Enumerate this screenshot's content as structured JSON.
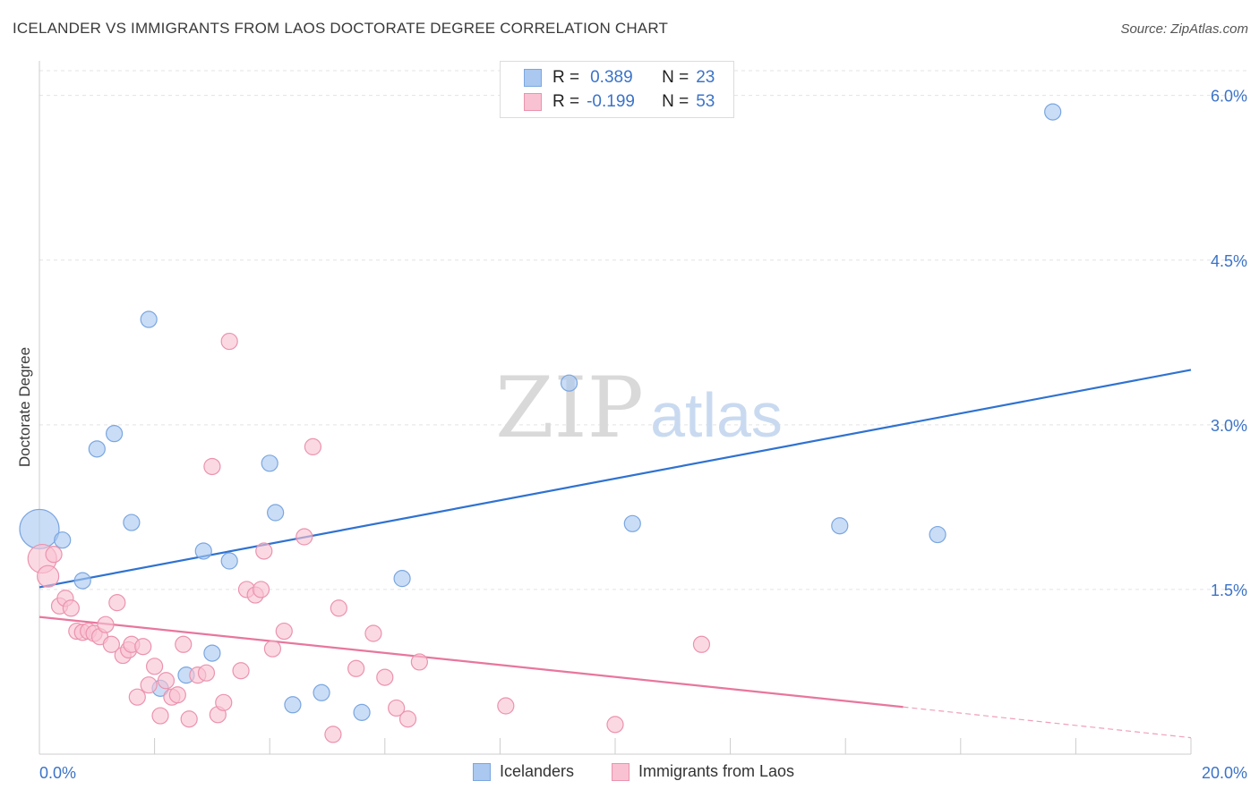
{
  "title": "ICELANDER VS IMMIGRANTS FROM LAOS DOCTORATE DEGREE CORRELATION CHART",
  "source": "Source: ZipAtlas.com",
  "watermark": {
    "zip": "ZIP",
    "atlas": "atlas"
  },
  "legend": [
    {
      "r_label": "R =",
      "r_value": "0.389",
      "n_label": "N =",
      "n_value": "23",
      "color": "#aac8f0",
      "border": "#7aa6e0"
    },
    {
      "r_label": "R =",
      "r_value": "-0.199",
      "n_label": "N =",
      "n_value": "53",
      "color": "#f8c2d2",
      "border": "#eb93ae"
    }
  ],
  "bottom_legend": [
    {
      "label": "Icelanders",
      "color": "#aac8f0",
      "border": "#7aa6e0"
    },
    {
      "label": "Immigrants from Laos",
      "color": "#f8c2d2",
      "border": "#eb93ae"
    }
  ],
  "chart_data": {
    "type": "scatter",
    "title": "ICELANDER VS IMMIGRANTS FROM LAOS DOCTORATE DEGREE CORRELATION CHART",
    "xlabel": "",
    "ylabel": "Doctorate Degree",
    "xlim": [
      0,
      20
    ],
    "ylim": [
      0,
      6.25
    ],
    "x_tick_labels": [
      "0.0%",
      "20.0%"
    ],
    "y_ticks": [
      1.5,
      3.0,
      4.5,
      6.0
    ],
    "y_tick_labels": [
      "1.5%",
      "3.0%",
      "4.5%",
      "6.0%"
    ],
    "grid": true,
    "legend_position": "top-center",
    "series": [
      {
        "name": "Icelanders",
        "color": "#7aa6e0",
        "fill": "#aac8f0",
        "line_color": "#2f72d0",
        "trend": {
          "x0": 0,
          "y0": 1.52,
          "x1": 20,
          "y1": 3.5
        },
        "points": [
          [
            0.0,
            2.05,
            22
          ],
          [
            0.4,
            1.95,
            9
          ],
          [
            0.75,
            1.58,
            9
          ],
          [
            1.0,
            2.78,
            9
          ],
          [
            1.3,
            2.92,
            9
          ],
          [
            1.6,
            2.11,
            9
          ],
          [
            1.9,
            3.96,
            9
          ],
          [
            2.1,
            0.6,
            9
          ],
          [
            2.55,
            0.72,
            9
          ],
          [
            2.85,
            1.85,
            9
          ],
          [
            3.0,
            0.92,
            9
          ],
          [
            3.3,
            1.76,
            9
          ],
          [
            4.0,
            2.65,
            9
          ],
          [
            4.1,
            2.2,
            9
          ],
          [
            4.4,
            0.45,
            9
          ],
          [
            4.9,
            0.56,
            9
          ],
          [
            5.6,
            0.38,
            9
          ],
          [
            6.3,
            1.6,
            9
          ],
          [
            9.2,
            3.38,
            9
          ],
          [
            10.3,
            2.1,
            9
          ],
          [
            13.9,
            2.08,
            9
          ],
          [
            15.6,
            2.0,
            9
          ],
          [
            17.6,
            5.85,
            9
          ]
        ]
      },
      {
        "name": "Immigrants from Laos",
        "color": "#eb93ae",
        "fill": "#f8c2d2",
        "line_color": "#e8769e",
        "trend": {
          "x0": 0,
          "y0": 1.25,
          "x1": 15.0,
          "y1": 0.43
        },
        "trend_dashed": {
          "x0": 15.0,
          "y0": 0.43,
          "x1": 20,
          "y1": 0.15
        },
        "points": [
          [
            0.05,
            1.78,
            16
          ],
          [
            0.15,
            1.62,
            12
          ],
          [
            0.25,
            1.82,
            9
          ],
          [
            0.35,
            1.35,
            9
          ],
          [
            0.45,
            1.42,
            9
          ],
          [
            0.55,
            1.33,
            9
          ],
          [
            0.65,
            1.12,
            9
          ],
          [
            0.75,
            1.11,
            9
          ],
          [
            0.85,
            1.12,
            9
          ],
          [
            0.95,
            1.1,
            9
          ],
          [
            1.05,
            1.07,
            9
          ],
          [
            1.15,
            1.18,
            9
          ],
          [
            1.25,
            1.0,
            9
          ],
          [
            1.35,
            1.38,
            9
          ],
          [
            1.45,
            0.9,
            9
          ],
          [
            1.55,
            0.95,
            9
          ],
          [
            1.6,
            1.0,
            9
          ],
          [
            1.7,
            0.52,
            9
          ],
          [
            1.8,
            0.98,
            9
          ],
          [
            1.9,
            0.63,
            9
          ],
          [
            2.0,
            0.8,
            9
          ],
          [
            2.1,
            0.35,
            9
          ],
          [
            2.2,
            0.67,
            9
          ],
          [
            2.3,
            0.52,
            9
          ],
          [
            2.4,
            0.54,
            9
          ],
          [
            2.5,
            1.0,
            9
          ],
          [
            2.6,
            0.32,
            9
          ],
          [
            2.75,
            0.72,
            9
          ],
          [
            2.9,
            0.74,
            9
          ],
          [
            3.0,
            2.62,
            9
          ],
          [
            3.1,
            0.36,
            9
          ],
          [
            3.2,
            0.47,
            9
          ],
          [
            3.3,
            3.76,
            9
          ],
          [
            3.5,
            0.76,
            9
          ],
          [
            3.6,
            1.5,
            9
          ],
          [
            3.75,
            1.45,
            9
          ],
          [
            3.85,
            1.5,
            9
          ],
          [
            3.9,
            1.85,
            9
          ],
          [
            4.05,
            0.96,
            9
          ],
          [
            4.25,
            1.12,
            9
          ],
          [
            4.6,
            1.98,
            9
          ],
          [
            4.75,
            2.8,
            9
          ],
          [
            5.1,
            0.18,
            9
          ],
          [
            5.2,
            1.33,
            9
          ],
          [
            5.5,
            0.78,
            9
          ],
          [
            5.8,
            1.1,
            9
          ],
          [
            6.0,
            0.7,
            9
          ],
          [
            6.2,
            0.42,
            9
          ],
          [
            6.4,
            0.32,
            9
          ],
          [
            6.6,
            0.84,
            9
          ],
          [
            8.1,
            0.44,
            9
          ],
          [
            10.0,
            0.27,
            9
          ],
          [
            11.5,
            1.0,
            9
          ]
        ]
      }
    ]
  }
}
